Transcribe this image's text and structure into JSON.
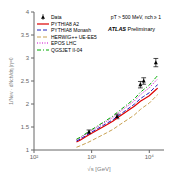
{
  "chart_data": {
    "type": "line",
    "xlabel": "√s [GeV]",
    "ylabel": "1/Nev · dNch/dη |η=0",
    "annotations": [
      "pT > 500 MeV, nch ≥ 1",
      "ATLAS Preliminary"
    ],
    "log": "x",
    "xlim": [
      100,
      18000
    ],
    "xticks": [
      {
        "value": 100,
        "label": "10²"
      },
      {
        "value": 1000,
        "label": "10³"
      },
      {
        "value": 10000,
        "label": "10⁴"
      }
    ],
    "ylim": [
      1.0,
      4.0
    ],
    "yticks": [
      1.0,
      1.5,
      2.0,
      2.5,
      3.0,
      3.5,
      4.0
    ],
    "grid": false,
    "legend": "upper left",
    "series": [
      {
        "name": "Data",
        "type": "scatter",
        "color": "#000000",
        "marker": "triangle",
        "x": [
          900,
          2760,
          7000,
          8000,
          13000
        ],
        "values": [
          1.395,
          1.73,
          2.42,
          2.5,
          2.9
        ],
        "yerr": [
          0.04,
          0.05,
          0.07,
          0.07,
          0.09
        ]
      },
      {
        "name": "PYTHIA8 A2",
        "type": "line",
        "color": "#dd0000",
        "line_style": "solid",
        "x": [
          546,
          630,
          900,
          1800,
          2360,
          2760,
          5500,
          7000,
          8000,
          10000,
          13000,
          14000
        ],
        "values": [
          1.175,
          1.21,
          1.33,
          1.545,
          1.63,
          1.695,
          1.95,
          2.06,
          2.105,
          2.18,
          2.31,
          2.345
        ]
      },
      {
        "name": "PYTHIA8 Monash",
        "type": "line",
        "color": "#2222bb",
        "line_style": "dashed",
        "x": [
          546,
          630,
          900,
          1800,
          2360,
          2760,
          5500,
          7000,
          8000,
          10000,
          13000,
          14000
        ],
        "values": [
          1.195,
          1.235,
          1.355,
          1.575,
          1.66,
          1.725,
          1.995,
          2.115,
          2.165,
          2.245,
          2.385,
          2.42
        ]
      },
      {
        "name": "HERWIG++ UE-EE5",
        "type": "line",
        "color": "#c8a050",
        "line_style": "dashed",
        "x": [
          546,
          630,
          900,
          1800,
          2360,
          2760,
          5500,
          7000,
          8000,
          10000,
          13000,
          14000
        ],
        "values": [
          1.06,
          1.09,
          1.175,
          1.37,
          1.45,
          1.51,
          1.76,
          1.88,
          1.935,
          2.02,
          2.165,
          2.205
        ]
      },
      {
        "name": "EPOS LHC",
        "type": "line",
        "color": "#cc00cc",
        "line_style": "dotted",
        "x": [
          546,
          630,
          900,
          1800,
          2360,
          2760,
          5500,
          7000,
          8000,
          10000,
          13000,
          14000
        ],
        "values": [
          1.22,
          1.26,
          1.385,
          1.62,
          1.71,
          1.785,
          2.065,
          2.2,
          2.26,
          2.35,
          2.505,
          2.545
        ]
      },
      {
        "name": "QGSJET II-04",
        "type": "line",
        "color": "#00aa00",
        "line_style": "dashdot",
        "x": [
          546,
          630,
          900,
          1800,
          2360,
          2760,
          5500,
          7000,
          8000,
          10000,
          13000,
          14000
        ],
        "values": [
          1.235,
          1.275,
          1.405,
          1.645,
          1.74,
          1.815,
          2.11,
          2.255,
          2.315,
          2.41,
          2.575,
          2.62
        ]
      }
    ]
  }
}
